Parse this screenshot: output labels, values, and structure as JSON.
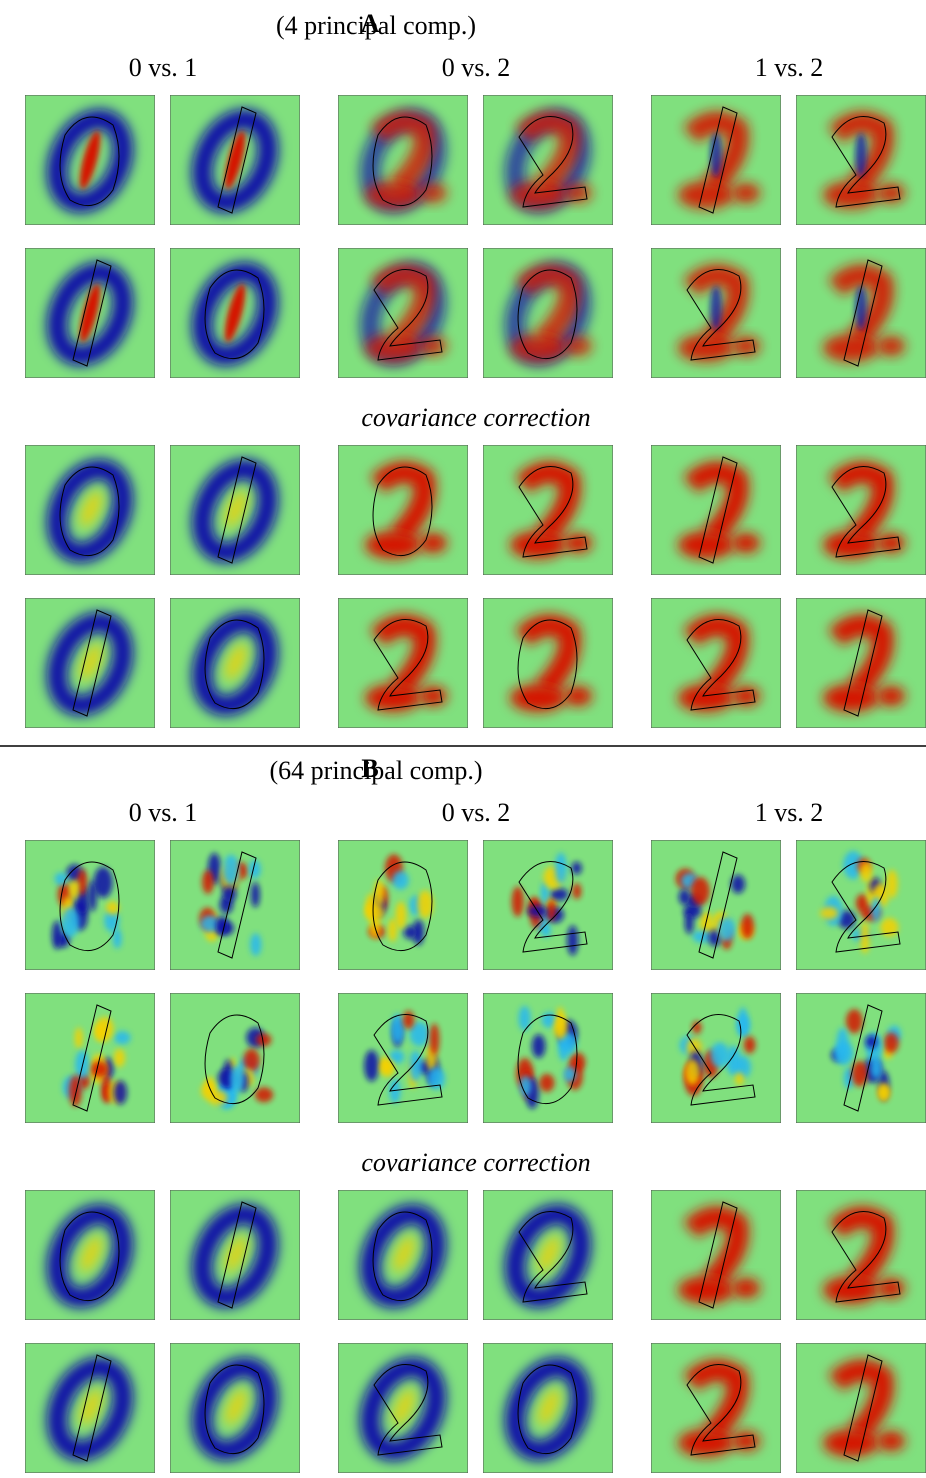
{
  "panels": [
    {
      "label": "A",
      "subtitle": "(4 principal comp.)",
      "columns": [
        "0 vs. 1",
        "0 vs. 2",
        "1 vs. 2"
      ],
      "correction_label": "covariance correction"
    },
    {
      "label": "B",
      "subtitle": "(64 principal comp.)",
      "columns": [
        "0 vs. 1",
        "0 vs. 2",
        "1 vs. 2"
      ],
      "correction_label": "covariance correction"
    }
  ]
}
